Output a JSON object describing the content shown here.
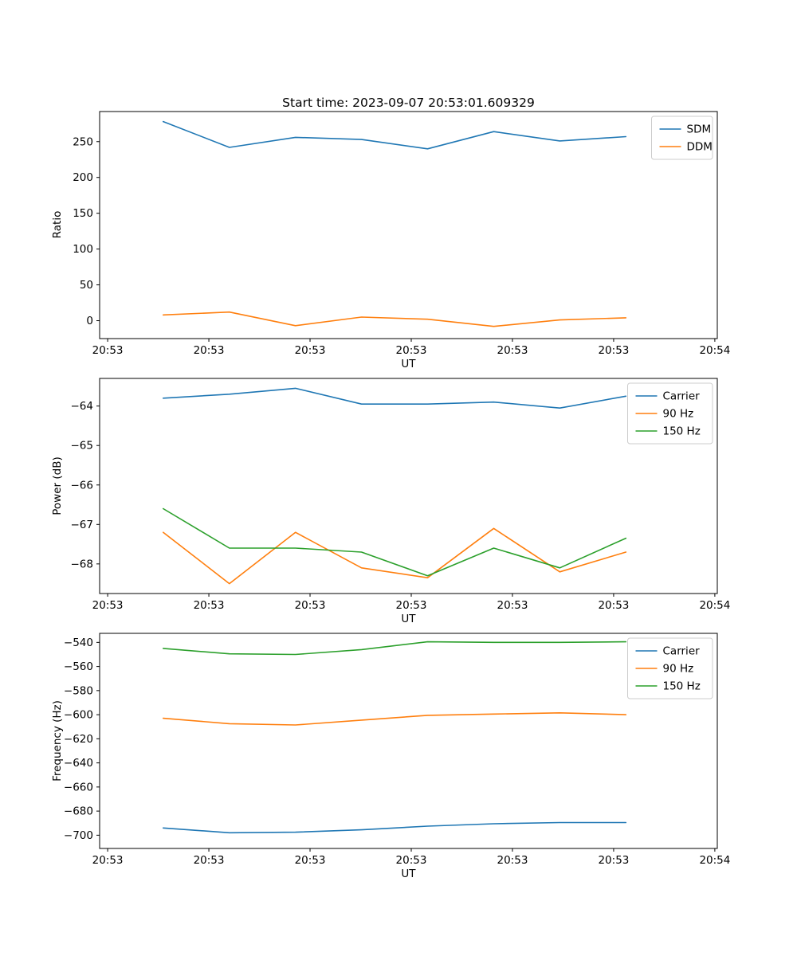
{
  "figure": {
    "background": "#ffffff",
    "text_color": "#000000",
    "spine_color": "#000000",
    "legend_border_color": "#cccccc"
  },
  "chart_data": [
    {
      "type": "line",
      "title": "Start time: 2023-09-07 20:53:01.609329",
      "xlabel": "UT",
      "ylabel": "Ratio",
      "x_tick_labels": [
        "20:53",
        "20:53",
        "20:53",
        "20:53",
        "20:53",
        "20:53",
        "20:54"
      ],
      "y_ticks": [
        0,
        50,
        100,
        150,
        200,
        250
      ],
      "ylim": [
        -25,
        292
      ],
      "grid": false,
      "legend_position": "upper right",
      "series": [
        {
          "name": "SDM",
          "color": "#1f77b4",
          "values": [
            278,
            242,
            256,
            253,
            240,
            264,
            251,
            257
          ]
        },
        {
          "name": "DDM",
          "color": "#ff7f0e",
          "values": [
            8,
            12,
            -7,
            5,
            2,
            -8,
            1,
            4
          ]
        }
      ]
    },
    {
      "type": "line",
      "title": "",
      "xlabel": "UT",
      "ylabel": "Power (dB)",
      "x_tick_labels": [
        "20:53",
        "20:53",
        "20:53",
        "20:53",
        "20:53",
        "20:53",
        "20:54"
      ],
      "y_ticks": [
        -64,
        -65,
        -66,
        -67,
        -68
      ],
      "ylim": [
        -68.75,
        -63.3
      ],
      "grid": false,
      "legend_position": "upper right",
      "series": [
        {
          "name": "Carrier",
          "color": "#1f77b4",
          "values": [
            -63.8,
            -63.7,
            -63.55,
            -63.95,
            -63.95,
            -63.9,
            -64.05,
            -63.75
          ]
        },
        {
          "name": "90 Hz",
          "color": "#ff7f0e",
          "values": [
            -67.2,
            -68.5,
            -67.2,
            -68.1,
            -68.35,
            -67.1,
            -68.2,
            -67.7
          ]
        },
        {
          "name": "150 Hz",
          "color": "#2ca02c",
          "values": [
            -66.6,
            -67.6,
            -67.6,
            -67.7,
            -68.3,
            -67.6,
            -68.1,
            -67.35
          ]
        }
      ]
    },
    {
      "type": "line",
      "title": "",
      "xlabel": "UT",
      "ylabel": "Frequency (Hz)",
      "x_tick_labels": [
        "20:53",
        "20:53",
        "20:53",
        "20:53",
        "20:53",
        "20:53",
        "20:54"
      ],
      "y_ticks": [
        -540,
        -560,
        -580,
        -600,
        -620,
        -640,
        -660,
        -680,
        -700
      ],
      "ylim": [
        -711,
        -532.5
      ],
      "grid": false,
      "legend_position": "upper right",
      "series": [
        {
          "name": "Carrier",
          "color": "#1f77b4",
          "values": [
            -694,
            -698,
            -697.5,
            -695.5,
            -692.5,
            -690.5,
            -689.5,
            -689.5
          ]
        },
        {
          "name": "90 Hz",
          "color": "#ff7f0e",
          "values": [
            -603,
            -607.5,
            -608.5,
            -604.5,
            -600.5,
            -599.5,
            -598.5,
            -600
          ]
        },
        {
          "name": "150 Hz",
          "color": "#2ca02c",
          "values": [
            -545,
            -549.5,
            -550,
            -546,
            -539.5,
            -540,
            -540,
            -539.5
          ]
        }
      ]
    }
  ]
}
